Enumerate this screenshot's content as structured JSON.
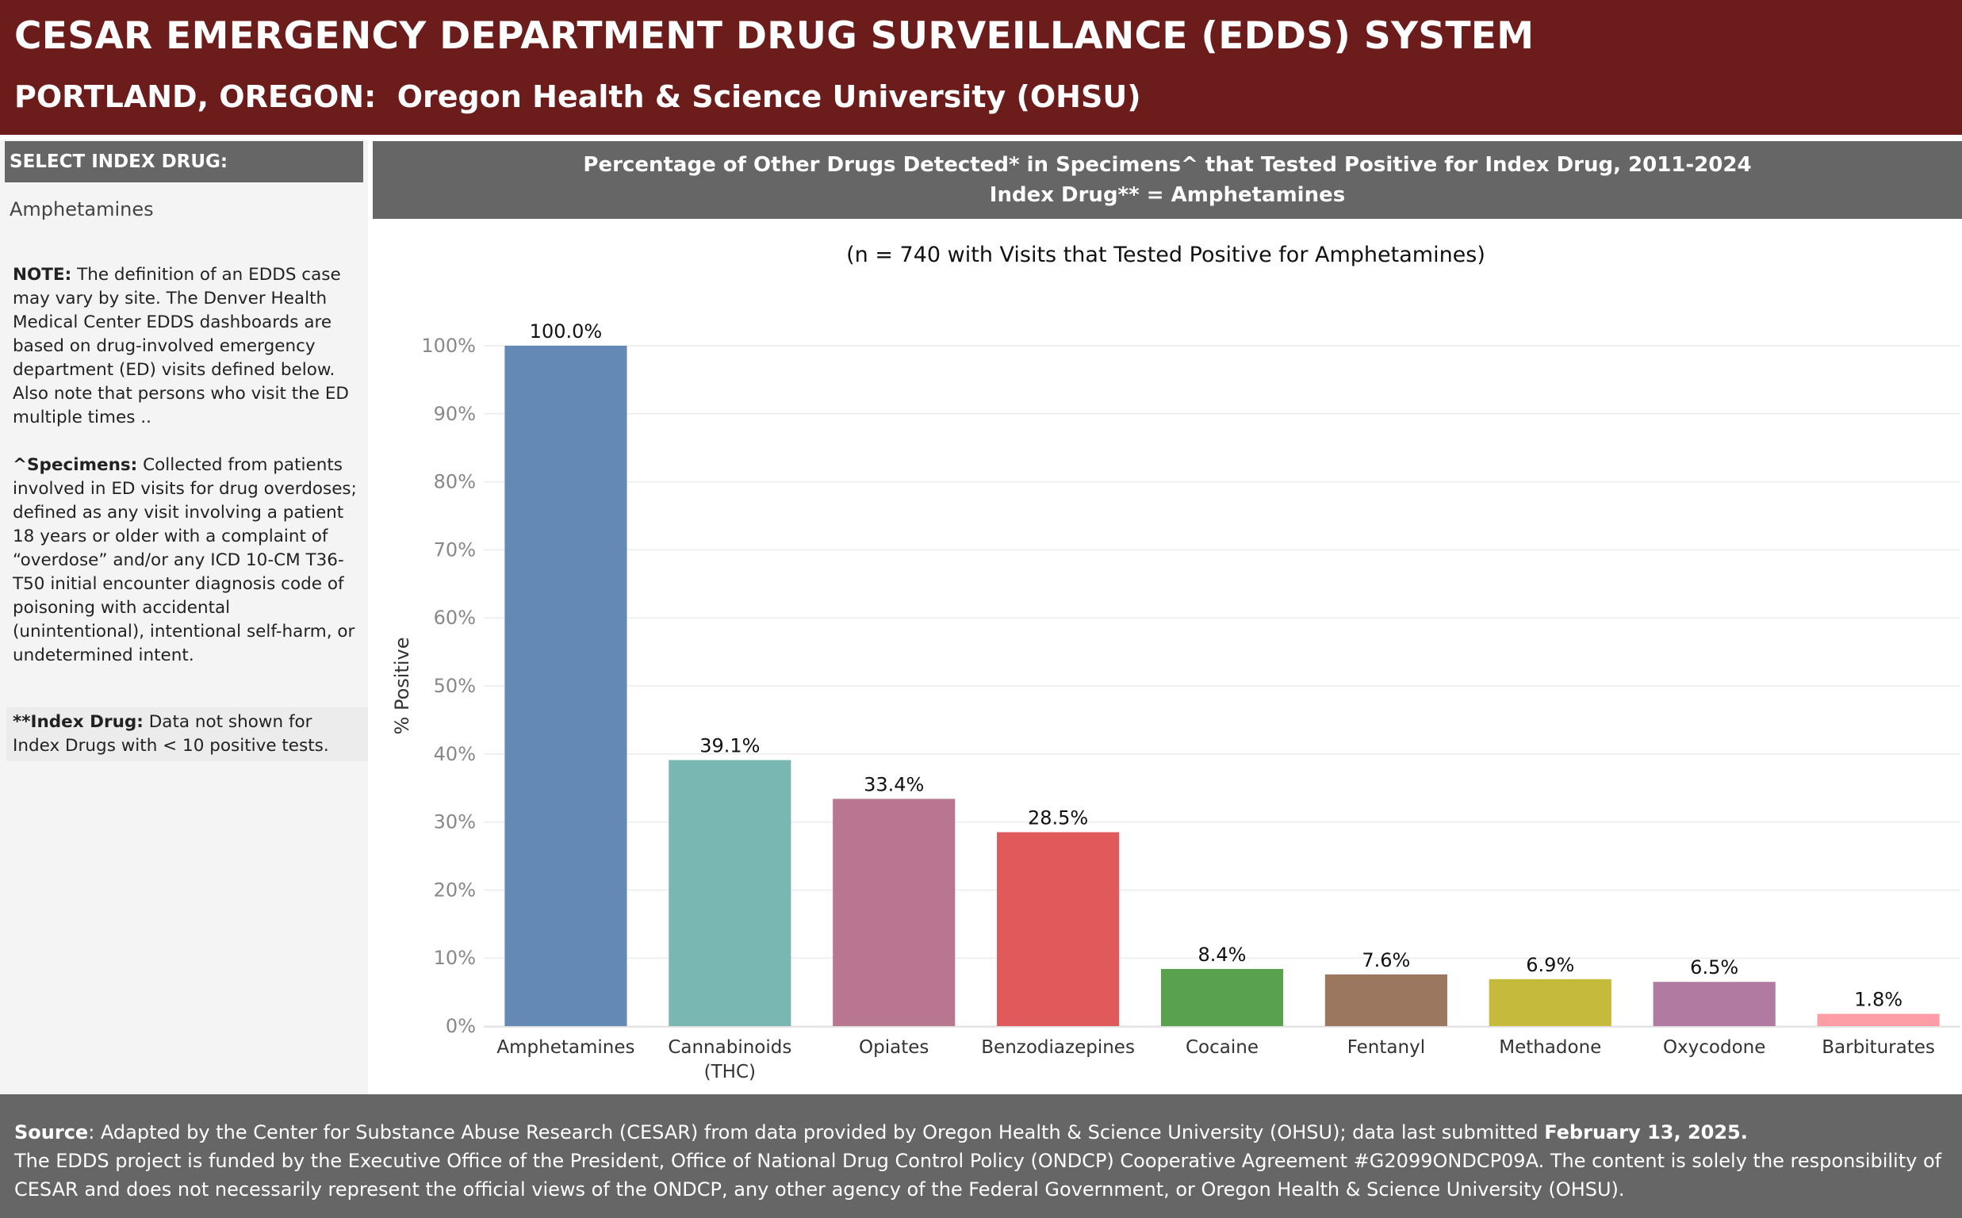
{
  "header": {
    "title": "CESAR EMERGENCY DEPARTMENT DRUG SURVEILLANCE (EDDS) SYSTEM",
    "subtitle": "PORTLAND, OREGON:  Oregon Health & Science University (OHSU)"
  },
  "sidebar": {
    "select_label": "SELECT INDEX DRUG:",
    "selected_value": "Amphetamines",
    "note1_label": "NOTE:",
    "note1_text": " The definition of an EDDS case may vary by site. The Denver Health Medical Center EDDS dashboards are based on drug-involved emergency department (ED) visits defined below. Also note that persons who visit the ED multiple times ..",
    "note2_label": "^Specimens:",
    "note2_text": " Collected from patients involved in ED visits for drug overdoses; defined as any visit involving a patient 18 years or older with a complaint of “overdose” and/or any ICD 10-CM T36-T50 initial encounter diagnosis code of poisoning with accidental (unintentional), intentional self-harm, or undetermined intent.",
    "note3_label": "**Index Drug:",
    "note3_text": " Data not shown for Index Drugs with < 10 positive tests."
  },
  "chart_header": {
    "line1": "Percentage of Other Drugs Detected* in Specimens^ that Tested Positive for Index Drug, 2011-2024",
    "line2": "Index Drug** = Amphetamines"
  },
  "chart_data": {
    "type": "bar",
    "subtitle": "(n = 740 with Visits that Tested Positive for Amphetamines)",
    "ylabel": "% Positive",
    "xlabel": "",
    "ylim": [
      0,
      100
    ],
    "yticks": [
      "0%",
      "10%",
      "20%",
      "30%",
      "40%",
      "50%",
      "60%",
      "70%",
      "80%",
      "90%",
      "100%"
    ],
    "categories": [
      "Amphetamines",
      "Cannabinoids (THC)",
      "Opiates",
      "Benzodiazepines",
      "Cocaine",
      "Fentanyl",
      "Methadone",
      "Oxycodone",
      "Barbiturates"
    ],
    "category_lines": [
      [
        "Amphetamines"
      ],
      [
        "Cannabinoids",
        "(THC)"
      ],
      [
        "Opiates"
      ],
      [
        "Benzodiazepines"
      ],
      [
        "Cocaine"
      ],
      [
        "Fentanyl"
      ],
      [
        "Methadone"
      ],
      [
        "Oxycodone"
      ],
      [
        "Barbiturates"
      ]
    ],
    "values": [
      100.0,
      39.1,
      33.4,
      28.5,
      8.4,
      7.6,
      6.9,
      6.5,
      1.8
    ],
    "labels": [
      "100.0%",
      "39.1%",
      "33.4%",
      "28.5%",
      "8.4%",
      "7.6%",
      "6.9%",
      "6.5%",
      "1.8%"
    ],
    "colors": [
      "#6489b4",
      "#79b7b2",
      "#b97691",
      "#e05a5c",
      "#59a14f",
      "#9c7760",
      "#c5ba3c",
      "#b07aa1",
      "#ff9da7"
    ],
    "grid": true
  },
  "footer": {
    "source_label": "Source",
    "source_text": ": Adapted by the Center for Substance Abuse Research (CESAR) from data provided by Oregon Health & Science University (OHSU); data last submitted ",
    "source_date": "February 13, 2025.",
    "funding_text": "The EDDS project is funded by the Executive Office of the President, Office of National Drug Control Policy (ONDCP) Cooperative Agreement #G2099ONDCP09A. The content is solely the responsibility of CESAR and does not necessarily represent the official views of the ONDCP, any other agency of the Federal Government, or Oregon Health & Science University (OHSU)."
  }
}
